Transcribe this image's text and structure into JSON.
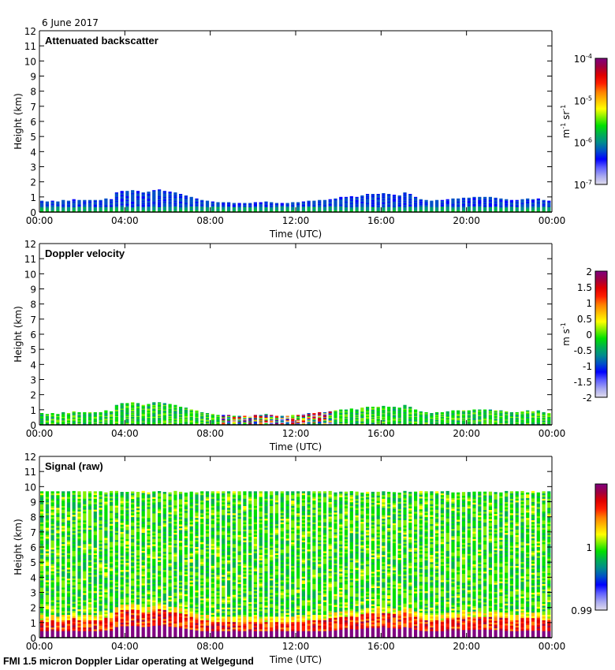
{
  "header": {
    "date": "6 June 2017"
  },
  "footer": {
    "caption": "FMI 1.5 micron Doppler Lidar operating at Welgegund"
  },
  "chart_data": [
    {
      "type": "heatmap",
      "title": "Attenuated backscatter",
      "xlabel": "Time (UTC)",
      "ylabel": "Height (km)",
      "xticks": [
        "00:00",
        "04:00",
        "08:00",
        "12:00",
        "16:00",
        "20:00",
        "00:00"
      ],
      "yticks": [
        "0",
        "1",
        "2",
        "3",
        "4",
        "5",
        "6",
        "7",
        "8",
        "9",
        "10",
        "11",
        "12"
      ],
      "ylim": [
        0,
        12
      ],
      "xlim_hours": [
        0,
        24
      ],
      "colorbar": {
        "label": "m-1 sr-1",
        "label_main": "m",
        "label_exp1": "-1",
        "label_mid": " sr",
        "label_exp2": "-1",
        "scale": "log",
        "range": [
          1e-07,
          0.0001
        ],
        "ticks": [
          {
            "base": "10",
            "exp": "-4"
          },
          {
            "base": "10",
            "exp": "-5"
          },
          {
            "base": "10",
            "exp": "-6"
          },
          {
            "base": "10",
            "exp": "-7"
          }
        ]
      },
      "profile_top_km": [
        0.75,
        0.7,
        0.75,
        0.7,
        0.8,
        0.75,
        0.85,
        0.8,
        0.8,
        0.8,
        0.8,
        0.8,
        0.9,
        0.85,
        1.3,
        1.4,
        1.4,
        1.45,
        1.4,
        1.3,
        1.35,
        1.45,
        1.5,
        1.4,
        1.35,
        1.3,
        1.2,
        1.1,
        1.0,
        0.9,
        0.8,
        0.75,
        0.7,
        0.65,
        0.65,
        0.65,
        0.6,
        0.6,
        0.6,
        0.6,
        0.65,
        0.65,
        0.7,
        0.65,
        0.6,
        0.6,
        0.6,
        0.65,
        0.65,
        0.7,
        0.75,
        0.75,
        0.8,
        0.8,
        0.85,
        0.9,
        1.0,
        1.0,
        1.05,
        1.0,
        1.1,
        1.2,
        1.2,
        1.2,
        1.25,
        1.2,
        1.15,
        1.1,
        1.3,
        1.2,
        1.0,
        0.85,
        0.8,
        0.75,
        0.8,
        0.8,
        0.85,
        0.9,
        0.9,
        0.95,
        0.95,
        1.0,
        1.0,
        1.0,
        1.0,
        0.95,
        0.9,
        0.85,
        0.8,
        0.8,
        0.85,
        0.9,
        0.85,
        0.9,
        0.8,
        0.75
      ]
    },
    {
      "type": "heatmap",
      "title": "Doppler velocity",
      "xlabel": "Time (UTC)",
      "ylabel": "Height (km)",
      "xticks": [
        "00:00",
        "04:00",
        "08:00",
        "12:00",
        "16:00",
        "20:00",
        "00:00"
      ],
      "yticks": [
        "0",
        "1",
        "2",
        "3",
        "4",
        "5",
        "6",
        "7",
        "8",
        "9",
        "10",
        "11",
        "12"
      ],
      "ylim": [
        0,
        12
      ],
      "xlim_hours": [
        0,
        24
      ],
      "colorbar": {
        "label": "m s-1",
        "label_main": "m s",
        "label_exp": "-1",
        "range": [
          -2,
          2
        ],
        "ticks": [
          "2",
          "1.5",
          "1",
          "0.5",
          "0",
          "-0.5",
          "-1",
          "-1.5",
          "-2"
        ]
      },
      "turbulent_hours": [
        8.5,
        13.5
      ]
    },
    {
      "type": "heatmap",
      "title": "Signal (raw)",
      "xlabel": "Time (UTC)",
      "ylabel": "Height (km)",
      "xticks": [
        "00:00",
        "04:00",
        "08:00",
        "12:00",
        "16:00",
        "20:00",
        "00:00"
      ],
      "yticks": [
        "0",
        "1",
        "2",
        "3",
        "4",
        "5",
        "6",
        "7",
        "8",
        "9",
        "10",
        "11",
        "12"
      ],
      "ylim": [
        0,
        12
      ],
      "xlim_hours": [
        0,
        24
      ],
      "data_top_km": 9.6,
      "colorbar": {
        "range": [
          0.99,
          1.01
        ],
        "ticks": [
          "1",
          "0.99"
        ]
      }
    }
  ],
  "colors": {
    "scale": [
      "#e0dcec",
      "#a8a8f0",
      "#6060ff",
      "#0000ff",
      "#0050c8",
      "#008c8c",
      "#00b050",
      "#00e000",
      "#80f000",
      "#ffff00",
      "#ffc000",
      "#ff8000",
      "#ff2000",
      "#e00000",
      "#a00040",
      "#800080"
    ]
  }
}
